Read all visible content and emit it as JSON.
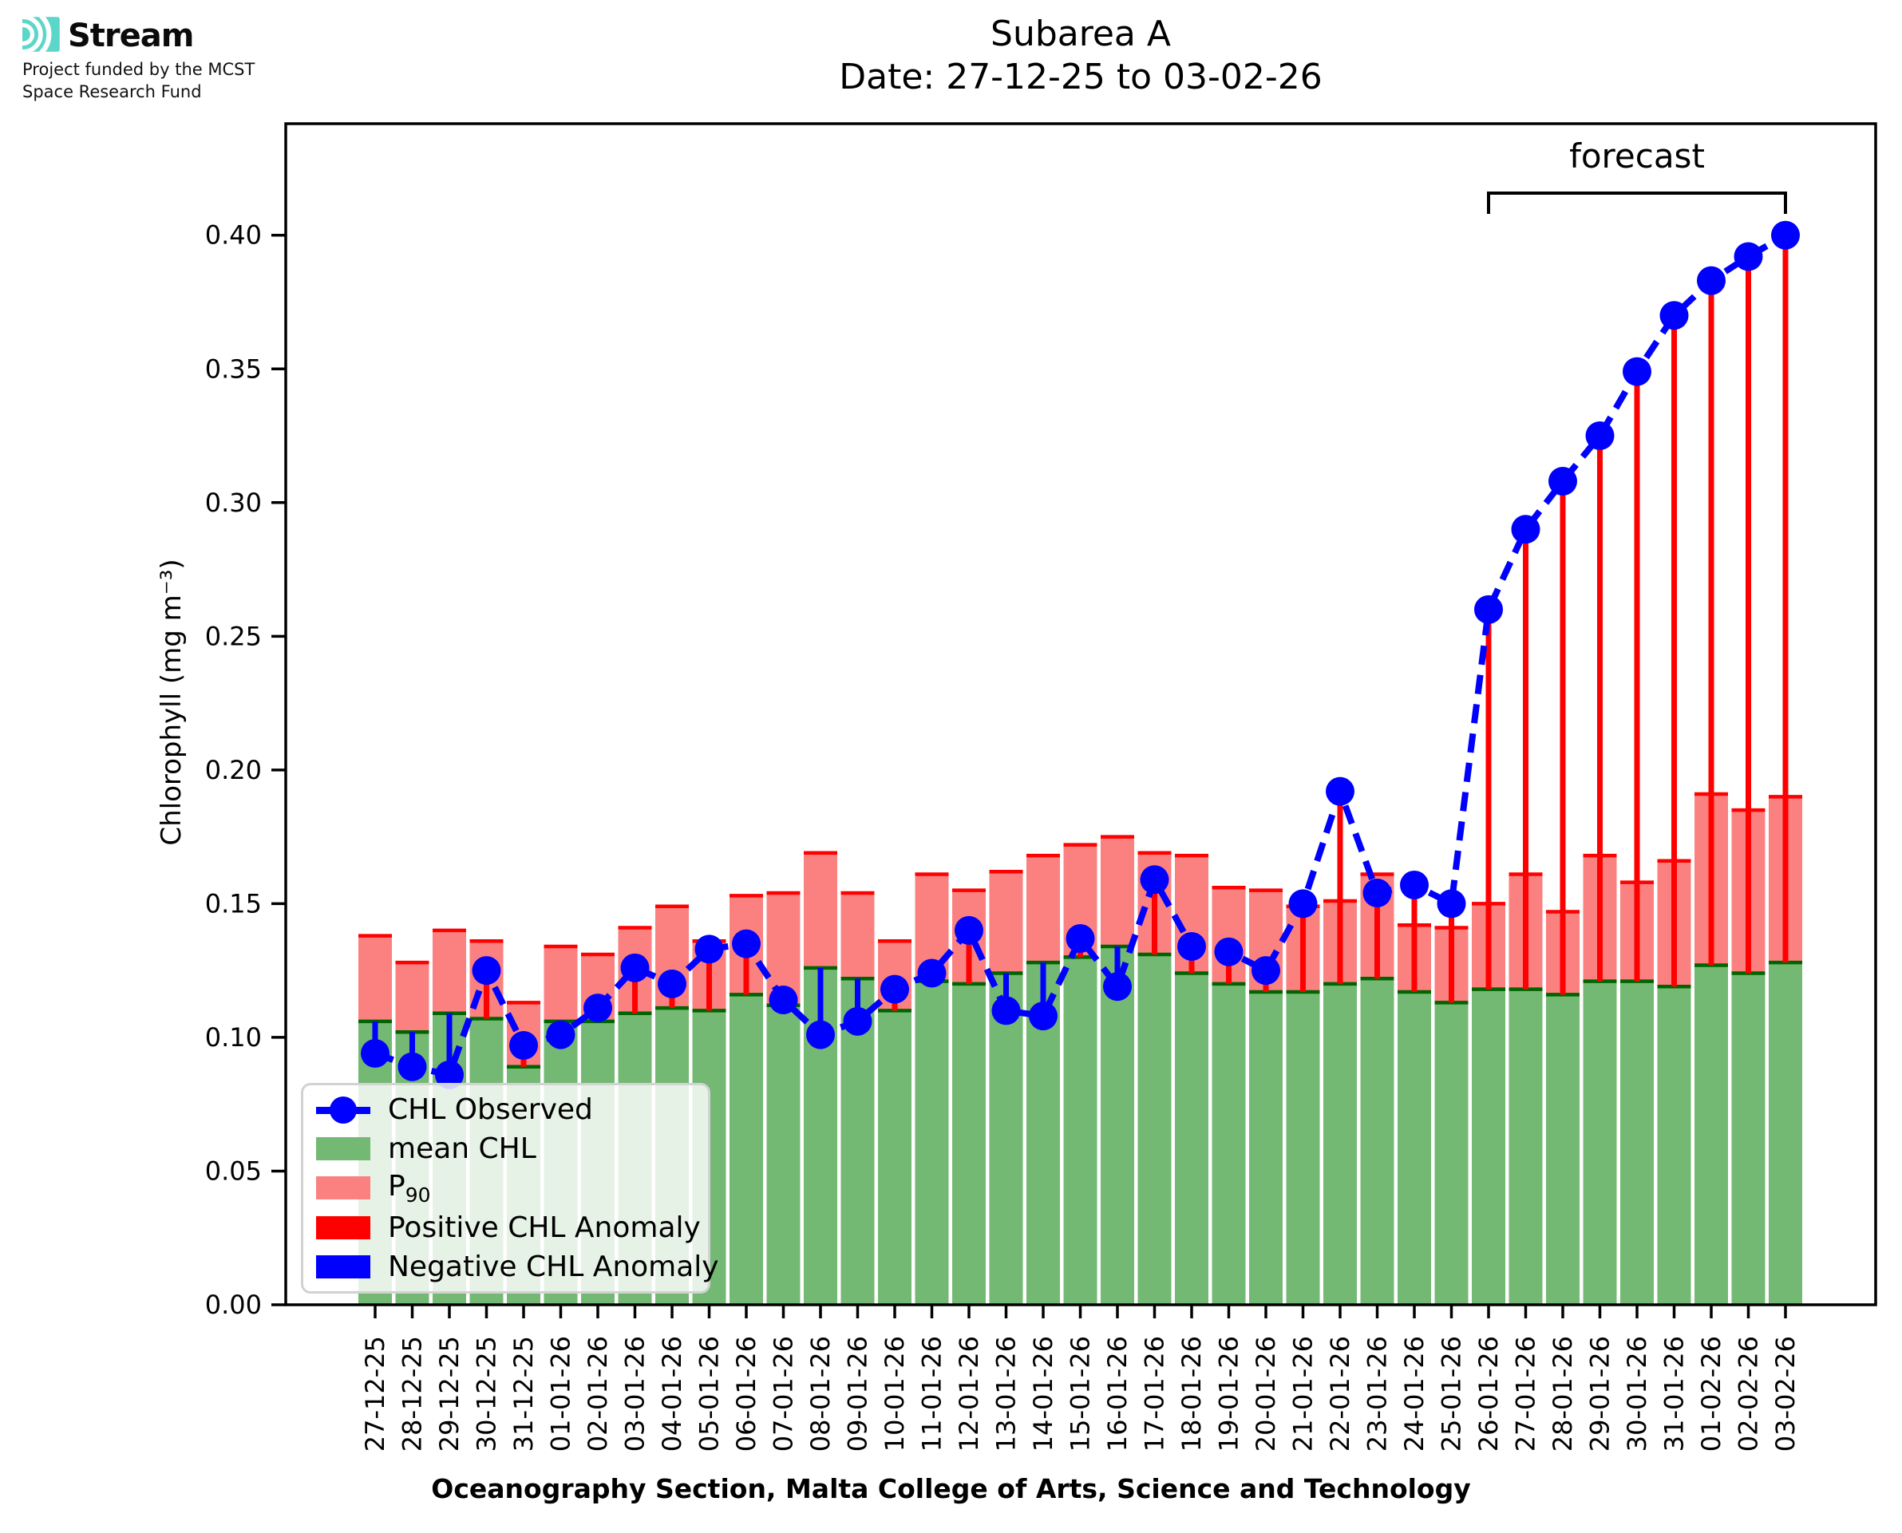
{
  "logo": {
    "brand": "Stream",
    "subtitle_line1": "Project funded by the MCST",
    "subtitle_line2": "Space Research Fund",
    "icon_color": "#5cd6c9"
  },
  "title": {
    "line1": "Subarea A",
    "line2": "Date: 27-12-25 to 03-02-26"
  },
  "axes": {
    "ylabel": "Chlorophyll (mg m⁻³)",
    "xlabel": "Oceanography Section, Malta College of Arts, Science and Technology",
    "y_tick_labels": [
      "0.00",
      "0.05",
      "0.10",
      "0.15",
      "0.20",
      "0.25",
      "0.30",
      "0.35",
      "0.40"
    ]
  },
  "legend": {
    "items": [
      {
        "label": "CHL Observed",
        "marker": "line-dot",
        "color": "#0000ff"
      },
      {
        "label": "mean CHL",
        "marker": "patch",
        "color": "#73b973"
      },
      {
        "label": "P",
        "sub": "90",
        "marker": "patch",
        "color": "#fb8181"
      },
      {
        "label": "Positive CHL Anomaly",
        "marker": "patch",
        "color": "#ff0000"
      },
      {
        "label": "Negative CHL Anomaly",
        "marker": "patch",
        "color": "#0000ff"
      }
    ]
  },
  "colors": {
    "mean_bar": "#73b973",
    "mean_edge": "#006400",
    "p90_bar": "#fb8181",
    "p90_edge": "#ff0000",
    "observed": "#0000ff",
    "positive_anomaly": "#ff0000",
    "negative_anomaly": "#0000ff",
    "logo_teal": "#5cd6c9"
  },
  "chart_data": {
    "type": "bar",
    "subtype": "bars-with-observed-line-and-anomaly-stems",
    "title": "Subarea A — Date: 27-12-25 to 03-02-26",
    "xlabel": "Oceanography Section, Malta College of Arts, Science and Technology",
    "ylabel": "Chlorophyll (mg m⁻³)",
    "ylim": [
      0,
      0.4417
    ],
    "y_ticks": [
      0,
      0.05,
      0.1,
      0.15,
      0.2,
      0.25,
      0.3,
      0.35,
      0.4
    ],
    "grid": false,
    "legend_position": "lower left",
    "categories": [
      "27-12-25",
      "28-12-25",
      "29-12-25",
      "30-12-25",
      "31-12-25",
      "01-01-26",
      "02-01-26",
      "03-01-26",
      "04-01-26",
      "05-01-26",
      "06-01-26",
      "07-01-26",
      "08-01-26",
      "09-01-26",
      "10-01-26",
      "11-01-26",
      "12-01-26",
      "13-01-26",
      "14-01-26",
      "15-01-26",
      "16-01-26",
      "17-01-26",
      "18-01-26",
      "19-01-26",
      "20-01-26",
      "21-01-26",
      "22-01-26",
      "23-01-26",
      "24-01-26",
      "25-01-26",
      "26-01-26",
      "27-01-26",
      "28-01-26",
      "29-01-26",
      "30-01-26",
      "31-01-26",
      "01-02-26",
      "02-02-26",
      "03-02-26"
    ],
    "series": [
      {
        "name": "mean CHL",
        "type": "bar",
        "color": "#73b973",
        "values": [
          0.106,
          0.102,
          0.109,
          0.107,
          0.089,
          0.106,
          0.106,
          0.109,
          0.111,
          0.11,
          0.116,
          0.112,
          0.126,
          0.122,
          0.11,
          0.121,
          0.12,
          0.124,
          0.128,
          0.13,
          0.134,
          0.131,
          0.124,
          0.12,
          0.117,
          0.117,
          0.12,
          0.122,
          0.117,
          0.113,
          0.118,
          0.118,
          0.116,
          0.121,
          0.121,
          0.119,
          0.127,
          0.124,
          0.128
        ]
      },
      {
        "name": "P90",
        "type": "bar",
        "color": "#fb8181",
        "values": [
          0.138,
          0.128,
          0.14,
          0.136,
          0.113,
          0.134,
          0.131,
          0.141,
          0.149,
          0.136,
          0.153,
          0.154,
          0.169,
          0.154,
          0.136,
          0.161,
          0.155,
          0.162,
          0.168,
          0.172,
          0.175,
          0.169,
          0.168,
          0.156,
          0.155,
          0.149,
          0.151,
          0.161,
          0.142,
          0.141,
          0.15,
          0.161,
          0.147,
          0.168,
          0.158,
          0.166,
          0.191,
          0.185,
          0.19
        ]
      },
      {
        "name": "CHL Observed",
        "type": "line",
        "style": "dashed",
        "marker": "circle",
        "color": "#0000ff",
        "values": [
          0.094,
          0.089,
          0.086,
          0.125,
          0.097,
          0.101,
          0.111,
          0.126,
          0.12,
          0.133,
          0.135,
          0.114,
          0.101,
          0.106,
          0.118,
          0.124,
          0.14,
          0.11,
          0.108,
          0.137,
          0.119,
          0.159,
          0.134,
          0.132,
          0.125,
          0.15,
          0.192,
          0.154,
          0.157,
          0.15,
          0.26,
          0.29,
          0.308,
          0.325,
          0.349,
          0.37,
          0.383,
          0.392,
          0.4
        ]
      }
    ],
    "anomaly_stems": {
      "baseline_series": "mean CHL",
      "tip_series": "CHL Observed",
      "positive_color": "#ff0000",
      "negative_color": "#0000ff"
    },
    "forecast": {
      "label": "forecast",
      "start_date": "26-01-26",
      "end_date": "03-02-26"
    }
  }
}
